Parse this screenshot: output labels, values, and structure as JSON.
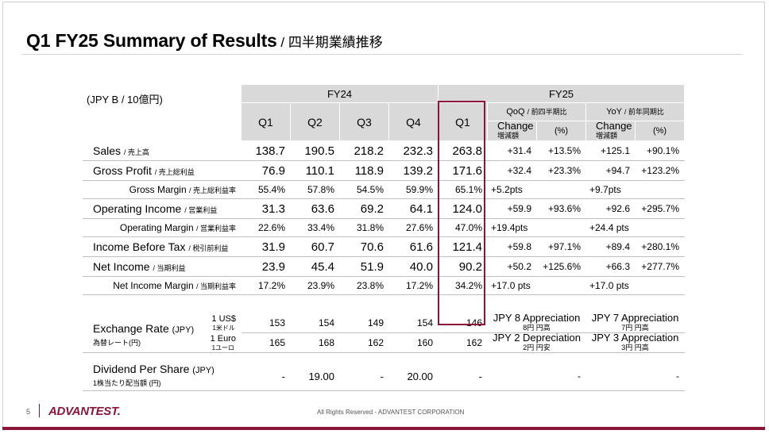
{
  "slide": {
    "title": "Q1 FY25 Summary of Results",
    "title_sep": " / ",
    "title_jp": "四半期業績推移",
    "page_number": "5",
    "logo_text": "ADVANTEST.",
    "copyright": "All Rights Reserved - ADVANTEST CORPORATION",
    "accent_color": "#8a1538",
    "header_bg": "#d9d9d9"
  },
  "table": {
    "unit": "(JPY B / 10億円)",
    "fy24": "FY24",
    "fy25": "FY25",
    "quarters": [
      "Q1",
      "Q2",
      "Q3",
      "Q4",
      "Q1"
    ],
    "qoq": "QoQ",
    "qoq_jp": "/ 前四半期比",
    "yoy": "YoY",
    "yoy_jp": "/ 前年同期比",
    "change": "Change",
    "change_jp": "増減額",
    "pct": "(%)",
    "rows": [
      {
        "label": "Sales",
        "jp": "/ 売上高",
        "v": [
          "138.7",
          "190.5",
          "218.2",
          "232.3",
          "263.8"
        ],
        "qoq": "+31.4",
        "qoq_pct": "+13.5%",
        "yoy": "+125.1",
        "yoy_pct": "+90.1%"
      },
      {
        "label": "Gross Profit",
        "jp": "/ 売上総利益",
        "v": [
          "76.9",
          "110.1",
          "118.9",
          "139.2",
          "171.6"
        ],
        "qoq": "+32.4",
        "qoq_pct": "+23.3%",
        "yoy": "+94.7",
        "yoy_pct": "+123.2%"
      },
      {
        "label": "Gross Margin",
        "jp": "/ 売上総利益率",
        "v": [
          "55.4%",
          "57.8%",
          "54.5%",
          "59.9%",
          "65.1%"
        ],
        "qoq": "+5.2pts",
        "qoq_pct": "",
        "yoy": "+9.7pts",
        "yoy_pct": ""
      },
      {
        "label": "Operating Income",
        "jp": "/ 営業利益",
        "v": [
          "31.3",
          "63.6",
          "69.2",
          "64.1",
          "124.0"
        ],
        "qoq": "+59.9",
        "qoq_pct": "+93.6%",
        "yoy": "+92.6",
        "yoy_pct": "+295.7%"
      },
      {
        "label": "Operating Margin",
        "jp": "/ 営業利益率",
        "v": [
          "22.6%",
          "33.4%",
          "31.8%",
          "27.6%",
          "47.0%"
        ],
        "qoq": "+19.4pts",
        "qoq_pct": "",
        "yoy": "+24.4 pts",
        "yoy_pct": ""
      },
      {
        "label": "Income Before Tax",
        "jp": "/ 税引前利益",
        "v": [
          "31.9",
          "60.7",
          "70.6",
          "61.6",
          "121.4"
        ],
        "qoq": "+59.8",
        "qoq_pct": "+97.1%",
        "yoy": "+89.4",
        "yoy_pct": "+280.1%"
      },
      {
        "label": "Net Income",
        "jp": "/ 当期利益",
        "v": [
          "23.9",
          "45.4",
          "51.9",
          "40.0",
          "90.2"
        ],
        "qoq": "+50.2",
        "qoq_pct": "+125.6%",
        "yoy": "+66.3",
        "yoy_pct": "+277.7%"
      },
      {
        "label": "Net Income Margin",
        "jp": "/ 当期利益率",
        "v": [
          "17.2%",
          "23.9%",
          "23.8%",
          "17.2%",
          "34.2%"
        ],
        "qoq": "+17.0 pts",
        "qoq_pct": "",
        "yoy": "+17.0 pts",
        "yoy_pct": ""
      }
    ],
    "fx": {
      "label": "Exchange Rate",
      "label_unit": "(JPY)",
      "label_jp": "為替レート(円)",
      "usd": {
        "label": "1 US$",
        "jp": "1米ドル",
        "v": [
          "153",
          "154",
          "149",
          "154",
          "146"
        ],
        "qoq": "JPY 8 Appreciation",
        "qoq_jp": "8円 円高",
        "yoy": "JPY 7 Appreciation",
        "yoy_jp": "7円 円高"
      },
      "eur": {
        "label": "1 Euro",
        "jp": "1ユーロ",
        "v": [
          "165",
          "168",
          "162",
          "160",
          "162"
        ],
        "qoq": "JPY 2 Depreciation",
        "qoq_jp": "2円 円安",
        "yoy": "JPY 3 Appreciation",
        "yoy_jp": "3円 円高"
      }
    },
    "dividend": {
      "label": "Dividend Per Share",
      "label_unit": "(JPY)",
      "label_jp": "1株当たり配当額 (円)",
      "v": [
        "-",
        "19.00",
        "-",
        "20.00",
        "-"
      ],
      "qoq": "-",
      "yoy": "-"
    }
  }
}
